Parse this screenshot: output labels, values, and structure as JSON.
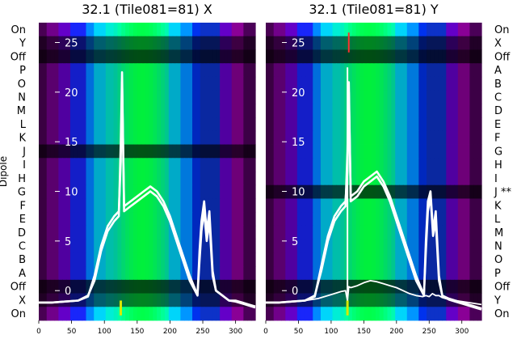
{
  "chart_data": [
    {
      "type": "heatmap",
      "title": "32.1 (Tile081=81) X",
      "ylabel": "Dipole",
      "xlim": [
        0,
        330
      ],
      "x_ticks": [
        0,
        50,
        100,
        150,
        200,
        250,
        300
      ],
      "overlay_ylim": [
        -3,
        27
      ],
      "overlay_ticks": [
        0,
        5,
        10,
        15,
        20,
        25
      ],
      "dipole_labels": [
        "On",
        "Y",
        "Off",
        "P",
        "O",
        "N",
        "M",
        "L",
        "K",
        "J",
        "I",
        "H",
        "G",
        "F",
        "E",
        "D",
        "C",
        "B",
        "A",
        "Off",
        "X",
        "On"
      ],
      "overlay_series": [
        {
          "x": [
            0,
            20,
            40,
            60,
            75,
            85,
            95,
            105,
            115,
            122,
            125,
            127,
            130,
            140,
            150,
            160,
            170,
            180,
            190,
            200,
            210,
            220,
            230,
            238,
            242,
            245,
            248,
            252,
            256,
            260,
            265,
            270,
            280,
            290,
            300,
            310,
            320,
            330
          ],
          "y": [
            -1.2,
            -1.2,
            -1.1,
            -1,
            -0.5,
            1,
            4,
            6,
            7,
            7.5,
            15,
            22,
            8,
            8.5,
            9,
            9.5,
            10,
            9.5,
            8.5,
            7,
            5,
            3,
            1,
            0,
            -0.5,
            4,
            7,
            9,
            6,
            8,
            2,
            0,
            -0.5,
            -1,
            -1,
            -1.2,
            -1.4,
            -1.6
          ]
        },
        {
          "x": [
            0,
            20,
            40,
            60,
            75,
            85,
            95,
            105,
            115,
            122,
            125,
            127,
            130,
            140,
            150,
            160,
            170,
            180,
            190,
            200,
            210,
            220,
            230,
            238,
            242,
            245,
            248,
            252,
            256,
            260,
            265,
            270,
            280,
            290,
            300,
            310,
            320,
            330
          ],
          "y": [
            -1.2,
            -1.2,
            -1.1,
            -1,
            -0.6,
            1.5,
            4.5,
            6.5,
            7.5,
            8,
            13,
            21,
            8.5,
            9,
            9.5,
            10,
            10.5,
            10,
            9,
            7.5,
            5.5,
            3.5,
            1.5,
            0.2,
            -0.4,
            3,
            6,
            8,
            5,
            7,
            1.5,
            0,
            -0.5,
            -1,
            -1.1,
            -1.3,
            -1.5,
            -1.7
          ]
        }
      ],
      "marker": {
        "x": 125,
        "y_range": [
          -2.5,
          -1
        ]
      }
    },
    {
      "type": "heatmap",
      "title": "32.1 (Tile081=81) Y",
      "xlim": [
        0,
        330
      ],
      "x_ticks": [
        0,
        50,
        100,
        150,
        200,
        250,
        300
      ],
      "overlay_ylim": [
        -3,
        27
      ],
      "overlay_ticks": [
        0,
        5,
        10,
        15,
        20,
        25
      ],
      "dipole_labels": [
        "On",
        "X",
        "Off",
        "A",
        "B",
        "C",
        "D",
        "E",
        "F",
        "G",
        "H",
        "I",
        "J **",
        "K",
        "L",
        "M",
        "N",
        "O",
        "P",
        "Off",
        "Y",
        "On"
      ],
      "overlay_series": [
        {
          "x": [
            0,
            20,
            40,
            60,
            75,
            85,
            95,
            105,
            115,
            122,
            125,
            127,
            130,
            140,
            150,
            160,
            170,
            180,
            190,
            200,
            210,
            220,
            230,
            238,
            242,
            245,
            248,
            252,
            256,
            260,
            265,
            270,
            280,
            290,
            300,
            310,
            320,
            330
          ],
          "y": [
            -1.2,
            -1.2,
            -1.1,
            -1,
            -0.5,
            2,
            5,
            7,
            8,
            8.5,
            14,
            21,
            9,
            9.5,
            10.5,
            11,
            11.5,
            10.5,
            9,
            7,
            5,
            3,
            1,
            0,
            -0.5,
            5,
            9,
            10,
            6,
            8,
            1.5,
            -0.5,
            -0.8,
            -1,
            -1.2,
            -1.4,
            -1.6,
            -1.8
          ]
        },
        {
          "x": [
            0,
            20,
            40,
            60,
            75,
            85,
            95,
            105,
            115,
            122,
            125,
            127,
            130,
            140,
            150,
            160,
            170,
            180,
            190,
            200,
            210,
            220,
            230,
            238,
            242,
            245,
            248,
            252,
            256,
            260,
            265,
            270,
            280,
            290,
            300,
            310,
            320,
            330
          ],
          "y": [
            -1.2,
            -1.2,
            -1.1,
            -1,
            -0.6,
            2.5,
            5.5,
            7.5,
            8.5,
            9,
            12,
            20,
            9.5,
            10,
            11,
            11.5,
            12,
            11,
            9.5,
            7.5,
            5.5,
            3.5,
            1.5,
            0.2,
            -0.4,
            4,
            8,
            9.5,
            5.5,
            7,
            1,
            -0.5,
            -0.9,
            -1.1,
            -1.3,
            -1.5,
            -1.7,
            -1.9
          ]
        },
        {
          "x": [
            0,
            20,
            40,
            60,
            80,
            100,
            115,
            122,
            125,
            127,
            130,
            140,
            150,
            160,
            170,
            180,
            190,
            200,
            210,
            220,
            230,
            240,
            245,
            250,
            255,
            260,
            265,
            270,
            280,
            290,
            300,
            310,
            320,
            330
          ],
          "y": [
            -1.2,
            -1.2,
            -1.1,
            -1,
            -0.8,
            -0.4,
            -0.1,
            0,
            -1,
            0.4,
            0.3,
            0.5,
            0.8,
            1,
            0.9,
            0.7,
            0.5,
            0.3,
            0,
            -0.3,
            -0.5,
            -0.6,
            -0.5,
            -0.6,
            -0.3,
            -0.5,
            -0.5,
            -0.7,
            -0.9,
            -1,
            -1.1,
            -1.2,
            -1.3,
            -1.4
          ]
        }
      ],
      "spike": {
        "x": 125,
        "y_range": [
          -1.2,
          22.5
        ]
      },
      "marker": {
        "x": 125,
        "y_range": [
          -2.5,
          -1
        ]
      },
      "top_marker": {
        "x": 127,
        "y_range": [
          24,
          26
        ]
      }
    }
  ]
}
